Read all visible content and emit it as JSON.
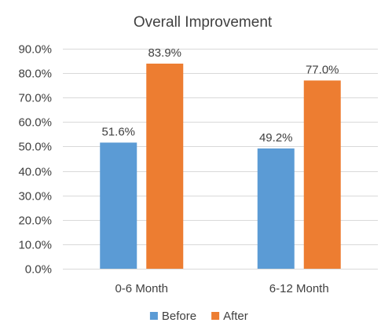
{
  "chart_data": {
    "type": "bar",
    "title": "Overall Improvement",
    "xlabel": "",
    "ylabel": "",
    "categories": [
      "0-6 Month",
      "6-12 Month"
    ],
    "series": [
      {
        "name": "Before",
        "color": "#5b9bd5",
        "values": [
          51.6,
          49.2
        ],
        "labels": [
          "51.6%",
          "49.2%"
        ]
      },
      {
        "name": "After",
        "color": "#ed7d31",
        "values": [
          83.9,
          77.0
        ],
        "labels": [
          "83.9%",
          "77.0%"
        ]
      }
    ],
    "ylim": [
      0,
      90
    ],
    "yticks": [
      0,
      10,
      20,
      30,
      40,
      50,
      60,
      70,
      80,
      90
    ],
    "ytick_labels": [
      "0.0%",
      "10.0%",
      "20.0%",
      "30.0%",
      "40.0%",
      "50.0%",
      "60.0%",
      "70.0%",
      "80.0%",
      "90.0%"
    ],
    "grid": true,
    "legend_position": "bottom"
  }
}
